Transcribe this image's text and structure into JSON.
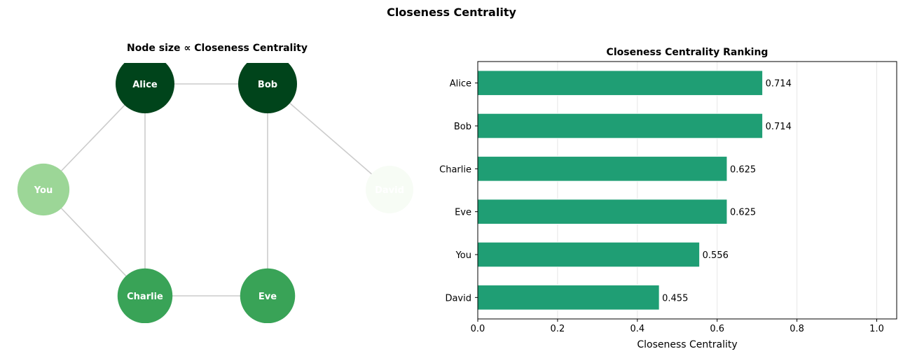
{
  "title": "Closeness Centrality",
  "network": {
    "title": "Node size ∝ Closeness Centrality",
    "nodes": [
      {
        "name": "Alice",
        "closeness": 0.714
      },
      {
        "name": "Bob",
        "closeness": 0.714
      },
      {
        "name": "You",
        "closeness": 0.556
      },
      {
        "name": "David",
        "closeness": 0.455
      },
      {
        "name": "Charlie",
        "closeness": 0.625
      },
      {
        "name": "Eve",
        "closeness": 0.625
      }
    ],
    "edges": [
      [
        "Alice",
        "Bob"
      ],
      [
        "Alice",
        "You"
      ],
      [
        "Alice",
        "Charlie"
      ],
      [
        "Bob",
        "Eve"
      ],
      [
        "Bob",
        "David"
      ],
      [
        "You",
        "Charlie"
      ],
      [
        "Charlie",
        "Eve"
      ]
    ],
    "colormap": "Greens",
    "edge_color": "#cccccc"
  },
  "chart_data": {
    "type": "bar",
    "orientation": "horizontal",
    "title": "Closeness Centrality Ranking",
    "xlabel": "Closeness Centrality",
    "ylabel": "",
    "categories": [
      "Alice",
      "Bob",
      "Charlie",
      "Eve",
      "You",
      "David"
    ],
    "values": [
      0.714,
      0.714,
      0.625,
      0.625,
      0.556,
      0.455
    ],
    "value_labels": [
      "0.714",
      "0.714",
      "0.625",
      "0.625",
      "0.556",
      "0.455"
    ],
    "xlim": [
      0,
      1.05
    ],
    "xticks": [
      "0.0",
      "0.2",
      "0.4",
      "0.6",
      "0.8",
      "1.0"
    ],
    "grid": "x",
    "bar_color": "#1f9e74"
  }
}
